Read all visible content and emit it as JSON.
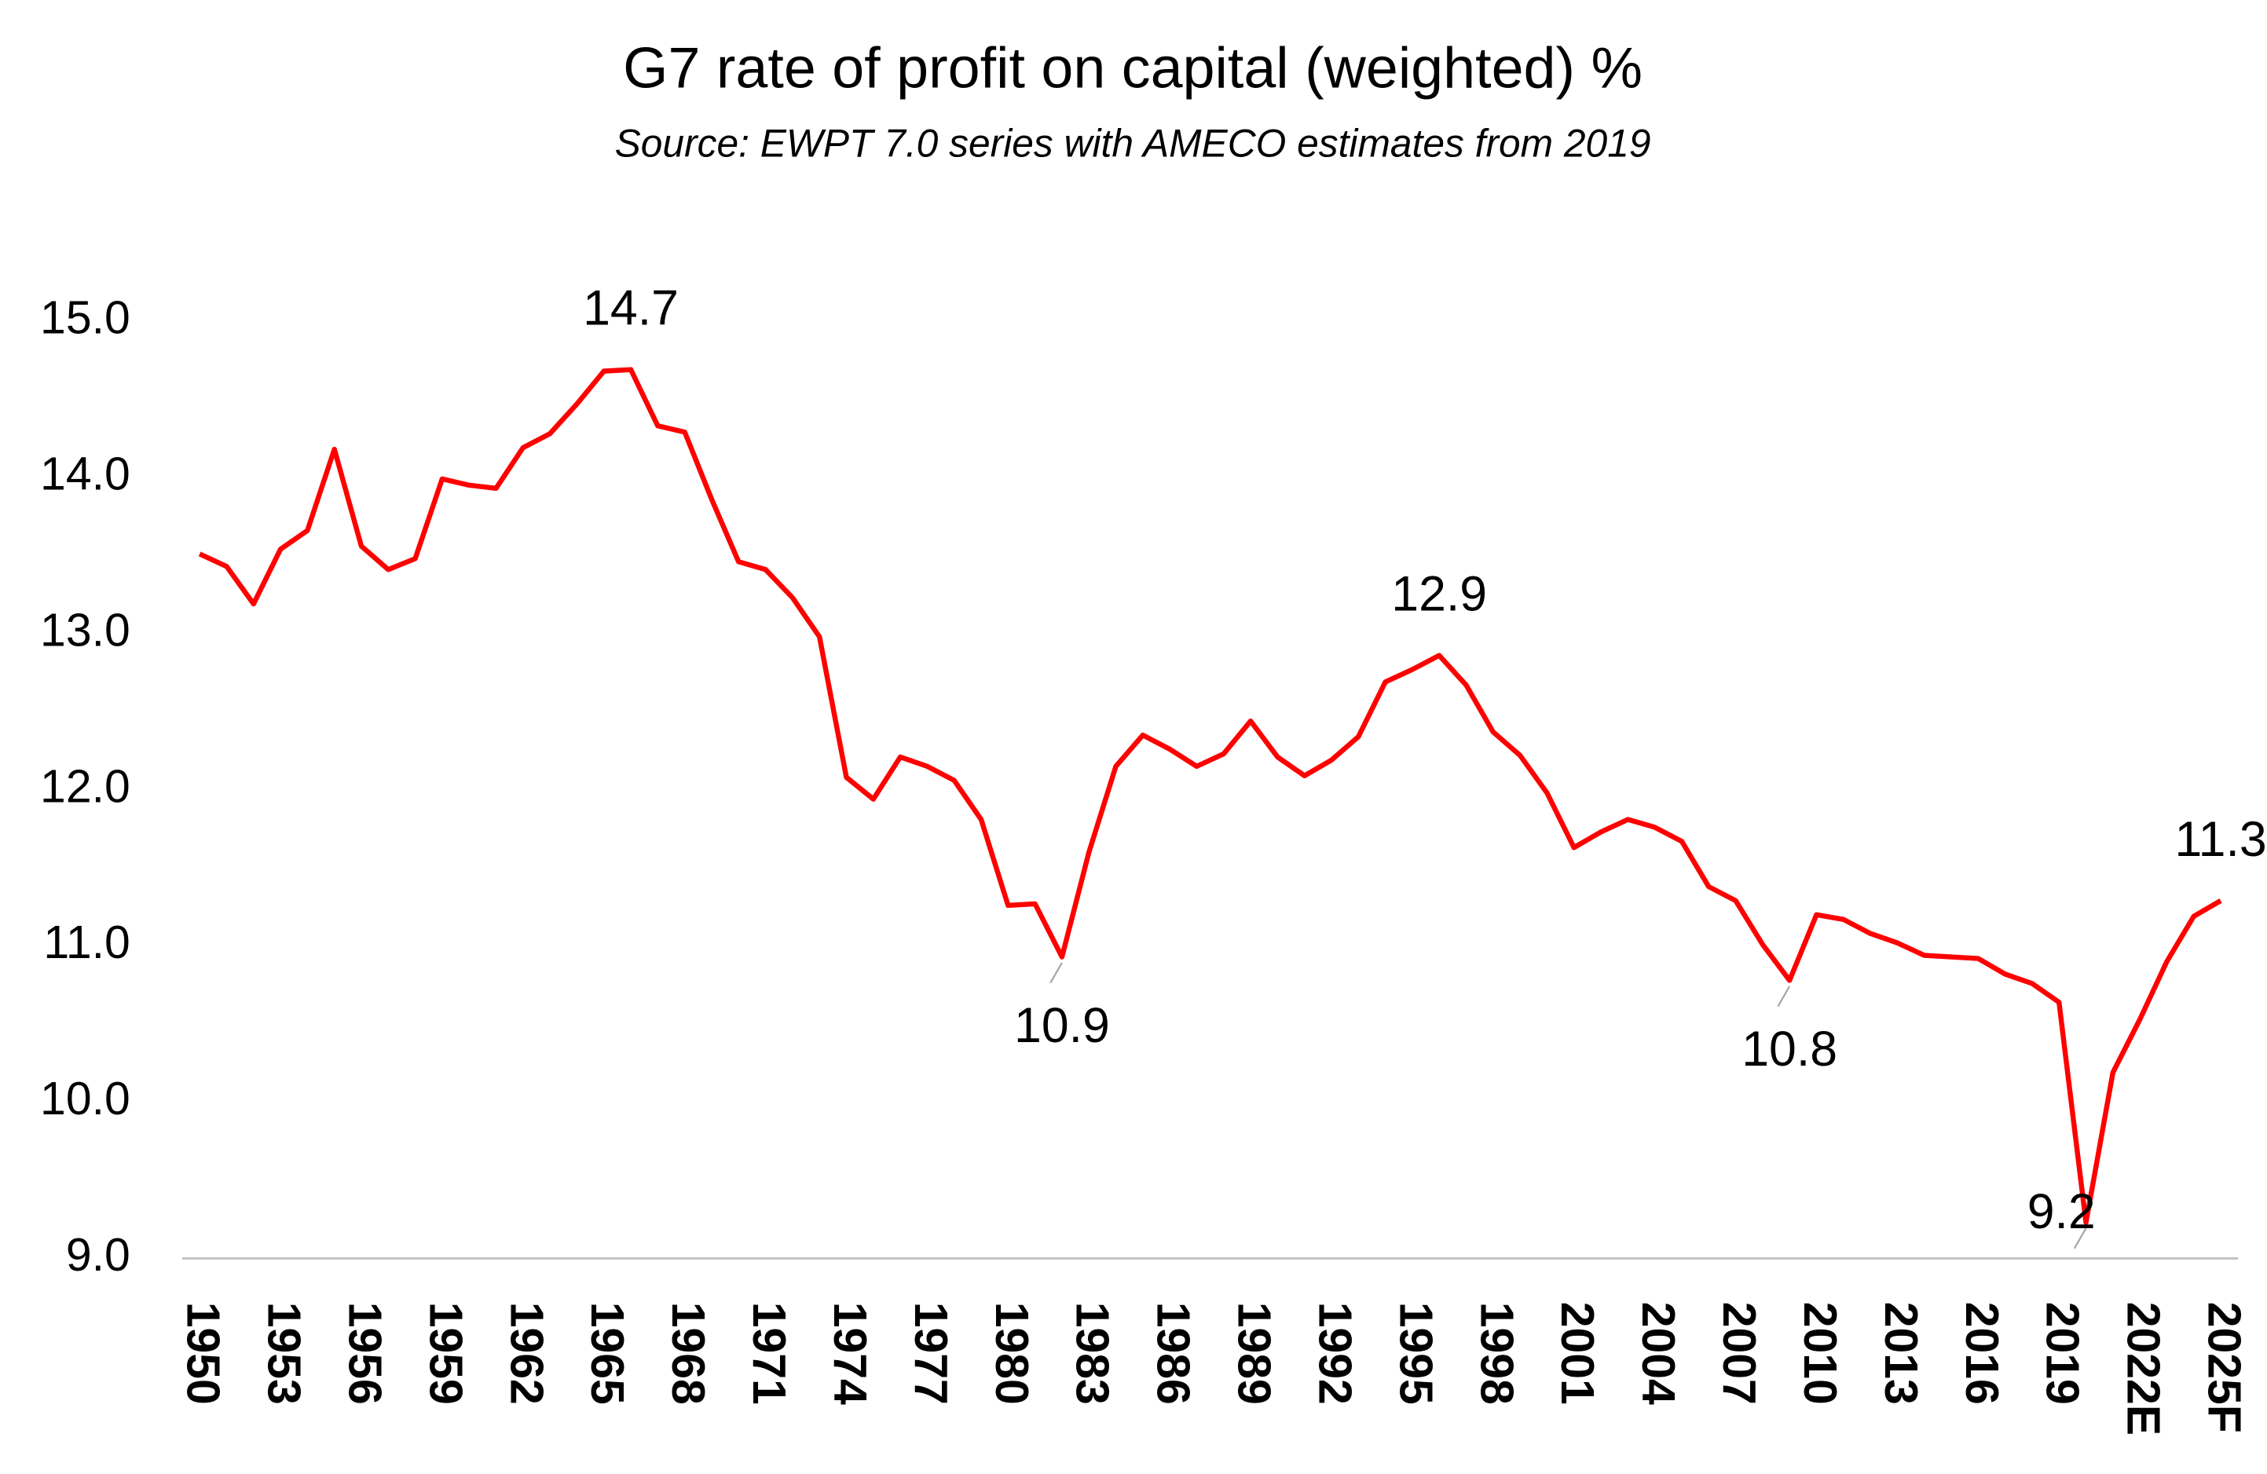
{
  "chart_data": {
    "type": "line",
    "title": "G7 rate of profit on capital (weighted) %",
    "subtitle": "Source: EWPT 7.0 series with AMECO estimates from 2019",
    "categories": [
      "1950",
      null,
      null,
      "1953",
      null,
      null,
      "1956",
      null,
      null,
      "1959",
      null,
      null,
      "1962",
      null,
      null,
      "1965",
      null,
      null,
      "1968",
      null,
      null,
      "1971",
      null,
      null,
      "1974",
      null,
      null,
      "1977",
      null,
      null,
      "1980",
      null,
      null,
      "1983",
      null,
      null,
      "1986",
      null,
      null,
      "1989",
      null,
      null,
      "1992",
      null,
      null,
      "1995",
      null,
      null,
      "1998",
      null,
      null,
      "2001",
      null,
      null,
      "2004",
      null,
      null,
      "2007",
      null,
      null,
      "2010",
      null,
      null,
      "2013",
      null,
      null,
      "2016",
      null,
      null,
      "2019",
      null,
      null,
      "2022E",
      null,
      null,
      "2025F"
    ],
    "series": [
      {
        "name": "G7 rate of profit",
        "color": "#ff0000",
        "values": [
          13.51,
          13.43,
          13.19,
          13.54,
          13.66,
          14.18,
          13.56,
          13.41,
          13.48,
          13.99,
          13.95,
          13.93,
          14.19,
          14.28,
          14.47,
          14.68,
          14.69,
          14.33,
          14.29,
          13.86,
          13.46,
          13.41,
          13.23,
          12.98,
          12.08,
          11.94,
          12.21,
          12.15,
          12.06,
          11.81,
          11.26,
          11.27,
          10.93,
          11.6,
          12.15,
          12.35,
          12.26,
          12.15,
          12.23,
          12.44,
          12.21,
          12.09,
          12.19,
          12.34,
          12.69,
          12.77,
          12.86,
          12.67,
          12.37,
          12.22,
          11.98,
          11.63,
          11.73,
          11.81,
          11.76,
          11.67,
          11.38,
          11.29,
          11.01,
          10.78,
          11.2,
          11.17,
          11.08,
          11.02,
          10.94,
          10.93,
          10.92,
          10.82,
          10.76,
          10.64,
          9.23,
          10.19,
          10.53,
          10.9,
          11.19,
          11.29
        ],
        "value_labels": [
          null,
          null,
          null,
          null,
          null,
          null,
          null,
          null,
          null,
          null,
          null,
          null,
          null,
          null,
          null,
          null,
          "14.7",
          null,
          null,
          null,
          null,
          null,
          null,
          null,
          null,
          null,
          null,
          null,
          null,
          null,
          null,
          null,
          "10.9",
          null,
          null,
          null,
          null,
          null,
          null,
          null,
          null,
          null,
          null,
          null,
          null,
          null,
          "12.9",
          null,
          null,
          null,
          null,
          null,
          null,
          null,
          null,
          null,
          null,
          null,
          null,
          "10.8",
          null,
          null,
          null,
          null,
          null,
          null,
          null,
          null,
          null,
          null,
          "9.2",
          null,
          null,
          null,
          null,
          "11.3"
        ]
      }
    ],
    "ylim": [
      9,
      15.2
    ],
    "yticks": [
      {
        "value": 9,
        "label": "9.0"
      },
      {
        "value": 10,
        "label": "10.0"
      },
      {
        "value": 11,
        "label": "11.0"
      },
      {
        "value": 12,
        "label": "12.0"
      },
      {
        "value": 13,
        "label": "13.0"
      },
      {
        "value": 14,
        "label": "14.0"
      },
      {
        "value": 15,
        "label": "15.0"
      }
    ],
    "grid": false
  }
}
